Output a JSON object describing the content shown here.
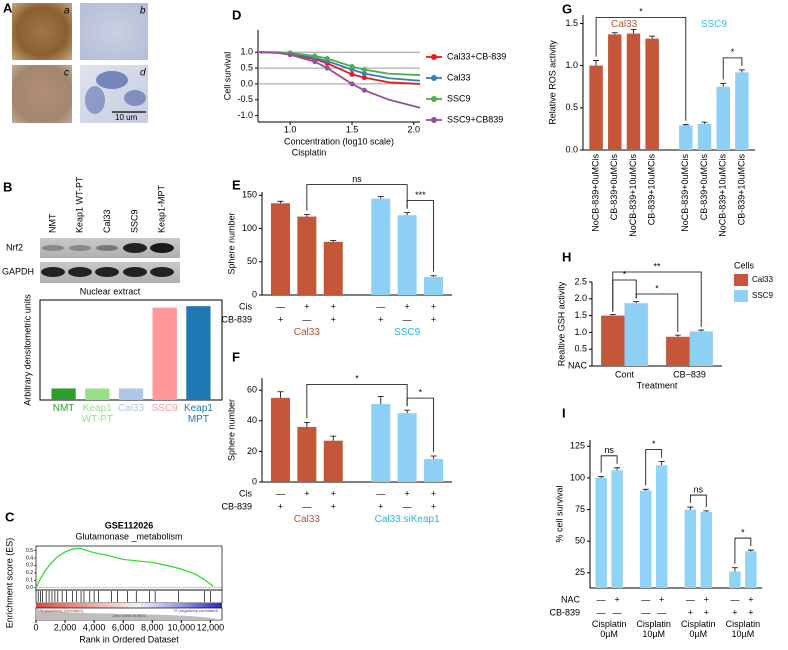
{
  "panel_a": {
    "label": "A",
    "images": [
      "a",
      "b",
      "c",
      "d"
    ],
    "scale_bar": "10 um"
  },
  "panel_b_blot": {
    "label": "B",
    "lanes": [
      "NMT",
      "Keap1 WT-PT",
      "Cal33",
      "SSC9",
      "Keap1-MPT"
    ],
    "bands": [
      "Nrf2",
      "GAPDH"
    ],
    "caption": "Nuclear extract"
  },
  "chart_data": [
    {
      "type": "bar",
      "ylabel": "Arbitrary densitometric units",
      "categories": [
        "NMT",
        "Keap1 WT-PT",
        "Cal33",
        "SSC9",
        "Keap1 MPT"
      ],
      "values": [
        0.15,
        0.15,
        0.15,
        1.2,
        1.22
      ],
      "colors": [
        "#2ca02c",
        "#98df8a",
        "#aec7e8",
        "#ff9896",
        "#1f77b4"
      ],
      "ylim": [
        0,
        1.3
      ],
      "frame": true
    },
    {
      "type": "gsea",
      "label": "C",
      "title": "GSE112026",
      "subtitle": "Glutamonase _metabolism",
      "ylabel": "Enrichment score (ES)",
      "xlabel": "Rank in Ordered Dataset",
      "x": [
        0,
        300,
        600,
        1000,
        1500,
        2000,
        2500,
        3000,
        3500,
        4000,
        5000,
        6000,
        7000,
        8000,
        9000,
        10000,
        11000,
        11500,
        12000,
        12200
      ],
      "values": [
        0,
        0.12,
        0.22,
        0.32,
        0.42,
        0.48,
        0.52,
        0.53,
        0.5,
        0.47,
        0.43,
        0.38,
        0.36,
        0.34,
        0.3,
        0.25,
        0.18,
        0.12,
        0.05,
        0.02
      ],
      "color": "#22dd22",
      "hits": [
        150,
        300,
        450,
        700,
        900,
        1100,
        1300,
        1500,
        1800,
        2100,
        2500,
        2800,
        3100,
        3300,
        3700,
        4000,
        4300,
        5200,
        5600,
        6300,
        6900,
        7800,
        8200,
        9800,
        11600,
        12000
      ],
      "notes": [
        "'1' (positively correlated)",
        "Zero cross at 6926",
        "'0' (negatively correlated)"
      ],
      "xlim": [
        0,
        12800
      ],
      "ylim": [
        -0.03,
        0.56
      ],
      "xticks": [
        0,
        {
          "value": 2000,
          "label": "2,000"
        },
        {
          "value": 4000,
          "label": "4,000"
        },
        {
          "value": 6000,
          "label": "6,000"
        },
        {
          "value": 8000,
          "label": "8,000"
        },
        {
          "value": 10000,
          "label": "10,000"
        },
        {
          "value": 12000,
          "label": "12,000"
        }
      ],
      "yticks": [
        {
          "value": 0,
          "label": "0.0"
        },
        0.1,
        0.2,
        0.3,
        0.4,
        0.5
      ]
    },
    {
      "type": "line",
      "label": "D",
      "ylabel": "Cell survival",
      "xlabel": "Concentration (log10 scale)",
      "xlabel2": "Cisplatin",
      "x": [
        0.75,
        0.9,
        1.0,
        1.2,
        1.3,
        1.5,
        1.6,
        1.8,
        2.05
      ],
      "series": [
        {
          "name": "Cal33+CB-839",
          "color": "#e41a1c",
          "values": [
            1.0,
            0.98,
            0.93,
            0.78,
            0.65,
            0.3,
            0.2,
            0.05,
            0.0
          ]
        },
        {
          "name": "Cal33",
          "color": "#377eb8",
          "values": [
            1.0,
            0.99,
            0.96,
            0.82,
            0.72,
            0.45,
            0.33,
            0.18,
            0.1
          ]
        },
        {
          "name": "SSC9",
          "color": "#4daf4a",
          "values": [
            1.0,
            1.0,
            0.98,
            0.88,
            0.8,
            0.55,
            0.45,
            0.32,
            0.28
          ]
        },
        {
          "name": "SSC9+CB839",
          "color": "#984ea3",
          "values": [
            1.0,
            0.98,
            0.92,
            0.7,
            0.5,
            0.0,
            -0.2,
            -0.5,
            -0.75
          ]
        }
      ],
      "hlines": [
        1,
        0.5,
        0
      ],
      "xlim": [
        0.74,
        2.05
      ],
      "ylim": [
        -1.2,
        1.7
      ],
      "xticks": [
        {
          "value": 1,
          "label": "1.0"
        },
        1.5,
        {
          "value": 2,
          "label": "2.0"
        }
      ],
      "yticks": [
        {
          "value": -1,
          "label": "-1.0"
        },
        -0.5,
        {
          "value": 0,
          "label": "0.0"
        },
        0.5,
        {
          "value": 1,
          "label": "1.0"
        }
      ]
    },
    {
      "type": "bar",
      "label": "E",
      "ylabel": "Sphere number",
      "values": [
        138,
        118,
        80,
        145,
        120,
        27
      ],
      "errors": [
        3,
        3,
        2,
        3,
        4,
        2
      ],
      "colors": [
        "#c4563a",
        "#c4563a",
        "#c4563a",
        "#8ed0f4",
        "#8ed0f4",
        "#8ed0f4"
      ],
      "ylim": [
        0,
        155
      ],
      "yticks": [
        0,
        50,
        100,
        150
      ],
      "conditions": [
        {
          "name": "Cis",
          "values": [
            "—",
            "+",
            "+",
            "—",
            "+",
            "+"
          ]
        },
        {
          "name": "CB-839",
          "values": [
            "+",
            "—",
            "+",
            "+",
            "—",
            "+"
          ]
        }
      ],
      "groups": [
        {
          "label": "Cal33",
          "color": "#c0532f"
        },
        {
          "label": "SSC9",
          "color": "#2bb5e6"
        }
      ],
      "annotations": [
        "ns",
        "***"
      ]
    },
    {
      "type": "bar",
      "label": "F",
      "ylabel": "Sphere number",
      "values": [
        55,
        36,
        27,
        51,
        45,
        15
      ],
      "errors": [
        4,
        3,
        3,
        5,
        2,
        2
      ],
      "colors": [
        "#c4563a",
        "#c4563a",
        "#c4563a",
        "#8ed0f4",
        "#8ed0f4",
        "#8ed0f4"
      ],
      "ylim": [
        0,
        68
      ],
      "yticks": [
        0,
        20,
        40,
        60
      ],
      "conditions": [
        {
          "name": "Cis",
          "values": [
            "—",
            "+",
            "+",
            "—",
            "+",
            "+"
          ]
        },
        {
          "name": "CB-839",
          "values": [
            "+",
            "—",
            "+",
            "+",
            "—",
            "+"
          ]
        }
      ],
      "groups": [
        {
          "label": "Cal33",
          "color": "#c0532f"
        },
        {
          "label": "Cal33:siKeap1",
          "color": "#2bb5e6"
        }
      ],
      "annotations": [
        "*",
        "*"
      ]
    },
    {
      "type": "bar",
      "label": "G",
      "ylabel": "Relative ROS activity",
      "categories": [
        "NoCB-839+0uMCis",
        "CB-839+0uMCis",
        "NoCB-839+10uMCis",
        "CB-839+10uMCis",
        "NoCB-839+0uMCis",
        "CB-839+0uMCis",
        "NoCB-839+10uMCis",
        "CB-839+10uMCis"
      ],
      "values": [
        1.0,
        1.37,
        1.38,
        1.32,
        0.29,
        0.31,
        0.75,
        0.92
      ],
      "errors": [
        0.06,
        0.02,
        0.05,
        0.03,
        0.01,
        0.02,
        0.04,
        0.03
      ],
      "colors": [
        "#c4563a",
        "#c4563a",
        "#c4563a",
        "#c4563a",
        "#8ed0f4",
        "#8ed0f4",
        "#8ed0f4",
        "#8ed0f4"
      ],
      "label_rotation": 90,
      "groups": [
        {
          "label": "Cal33",
          "color": "#c0532f"
        },
        {
          "label": "SSC9",
          "color": "#2bc3ee"
        }
      ],
      "groups_position": "top",
      "ylim": [
        0,
        1.6
      ],
      "yticks": [
        {
          "value": 0,
          "label": "0.0"
        },
        0.5,
        {
          "value": 1,
          "label": "1.0"
        },
        1.5
      ],
      "annotations": [
        "*",
        "*"
      ]
    },
    {
      "type": "grouped_bar",
      "label": "H",
      "ylabel": "Realtive GSH activity",
      "xlabel": "Treatment",
      "legend_title": "Cells",
      "categories": [
        "Cont",
        "CB−839"
      ],
      "series": [
        {
          "name": "Cal33",
          "color": "#c4563a",
          "values": [
            1.5,
            0.87
          ],
          "errors": [
            0.03,
            0.05
          ]
        },
        {
          "name": "SSC9",
          "color": "#8ed0f4",
          "values": [
            1.87,
            1.03
          ],
          "errors": [
            0.05,
            0.04
          ]
        }
      ],
      "ylim": [
        0,
        2.5
      ],
      "yticks": [
        {
          "value": 0,
          "label": "NAC"
        },
        0.5,
        {
          "value": 1,
          "label": "1.0"
        },
        1.5,
        {
          "value": 2,
          "label": "2.0"
        },
        2.5
      ],
      "annotations": [
        "*",
        "*",
        "**"
      ]
    },
    {
      "type": "bar",
      "label": "I",
      "ylabel": "% cell survival",
      "values": [
        100,
        106,
        90,
        110,
        75,
        73,
        26,
        42
      ],
      "errors": [
        1,
        2,
        1,
        3,
        2,
        1,
        3,
        1
      ],
      "color": "#8fd3f7",
      "ylim": [
        13,
        130
      ],
      "yticks": [
        25,
        50,
        75,
        100,
        125
      ],
      "conditions": [
        {
          "name": "NAC",
          "values": [
            "—",
            "+",
            "—",
            "+",
            "—",
            "+",
            "—",
            "+"
          ]
        },
        {
          "name": "CB-839",
          "values": [
            "—",
            "—",
            "—",
            "—",
            "+",
            "+",
            "+",
            "+"
          ]
        }
      ],
      "groups": [
        {
          "label": "Cisplatin 0µM"
        },
        {
          "label": "Cisplatin 10µM"
        },
        {
          "label": "Cisplatin 0µM"
        },
        {
          "label": "Cisplatin 10µM"
        }
      ],
      "annotations": [
        "ns",
        "*",
        "ns",
        "*"
      ]
    }
  ]
}
